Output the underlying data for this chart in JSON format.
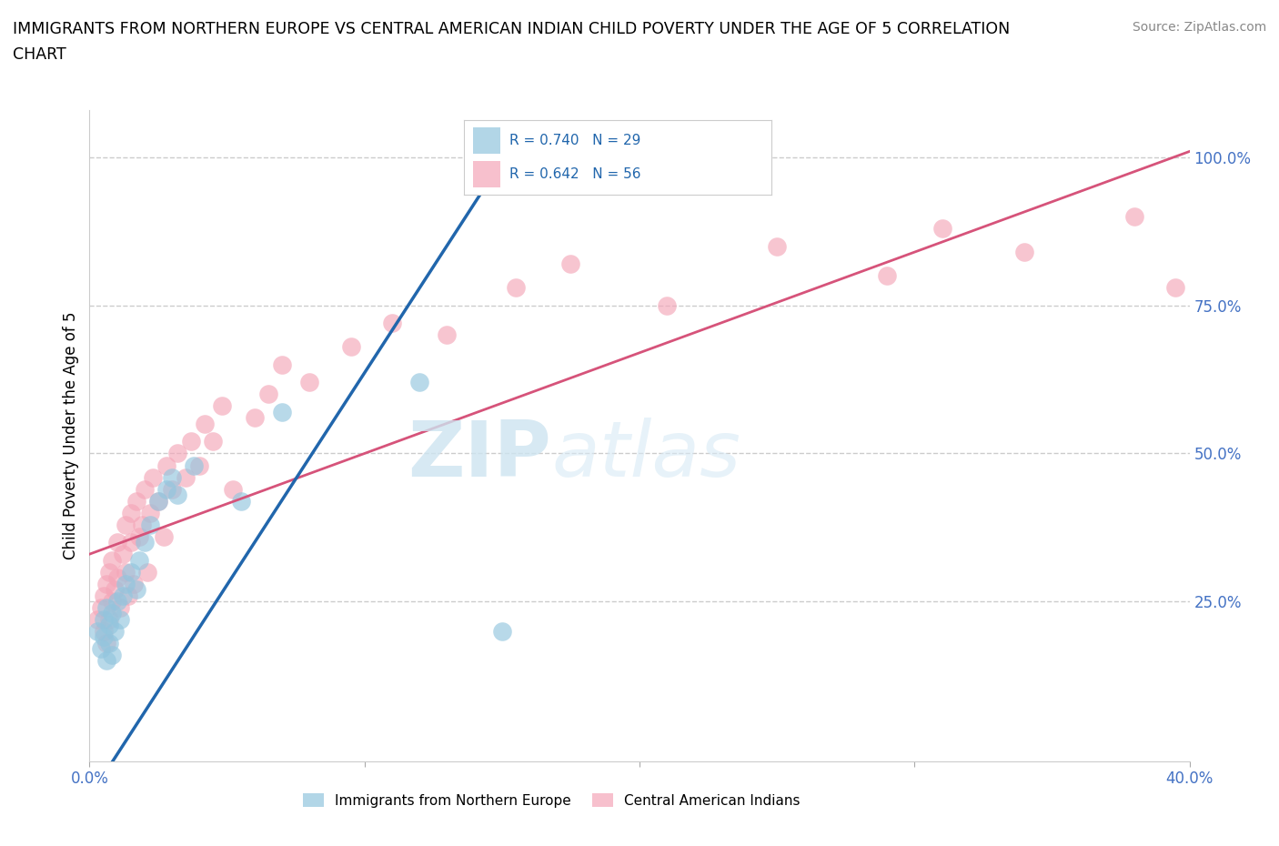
{
  "title_line1": "IMMIGRANTS FROM NORTHERN EUROPE VS CENTRAL AMERICAN INDIAN CHILD POVERTY UNDER THE AGE OF 5 CORRELATION",
  "title_line2": "CHART",
  "source": "Source: ZipAtlas.com",
  "ylabel": "Child Poverty Under the Age of 5",
  "xlim": [
    0.0,
    0.4
  ],
  "ylim": [
    0.0,
    1.05
  ],
  "xtick_positions": [
    0.0,
    0.1,
    0.2,
    0.3,
    0.4
  ],
  "xticklabels": [
    "0.0%",
    "",
    "",
    "",
    "40.0%"
  ],
  "ytick_positions": [
    0.25,
    0.5,
    0.75,
    1.0
  ],
  "ytick_labels": [
    "25.0%",
    "50.0%",
    "75.0%",
    "100.0%"
  ],
  "watermark_zip": "ZIP",
  "watermark_atlas": "atlas",
  "legend_r1": "R = 0.740",
  "legend_n1": "N = 29",
  "legend_r2": "R = 0.642",
  "legend_n2": "N = 56",
  "legend_label1": "Immigrants from Northern Europe",
  "legend_label2": "Central American Indians",
  "color_blue": "#92c5de",
  "color_pink": "#f4a6b8",
  "color_blue_line": "#2166ac",
  "color_pink_line": "#d6537a",
  "blue_line_x": [
    0.0,
    0.155
  ],
  "blue_line_y": [
    -0.08,
    1.03
  ],
  "pink_line_x": [
    0.0,
    0.4
  ],
  "pink_line_y": [
    0.33,
    1.01
  ],
  "blue_x": [
    0.003,
    0.004,
    0.005,
    0.005,
    0.006,
    0.006,
    0.007,
    0.007,
    0.008,
    0.008,
    0.009,
    0.01,
    0.011,
    0.012,
    0.013,
    0.015,
    0.017,
    0.018,
    0.02,
    0.022,
    0.025,
    0.028,
    0.03,
    0.032,
    0.038,
    0.055,
    0.07,
    0.12,
    0.15
  ],
  "blue_y": [
    0.2,
    0.17,
    0.19,
    0.22,
    0.15,
    0.24,
    0.18,
    0.21,
    0.16,
    0.23,
    0.2,
    0.25,
    0.22,
    0.26,
    0.28,
    0.3,
    0.27,
    0.32,
    0.35,
    0.38,
    0.42,
    0.44,
    0.46,
    0.43,
    0.48,
    0.42,
    0.57,
    0.62,
    0.2
  ],
  "pink_x": [
    0.003,
    0.004,
    0.005,
    0.005,
    0.006,
    0.006,
    0.007,
    0.007,
    0.008,
    0.008,
    0.009,
    0.01,
    0.01,
    0.011,
    0.012,
    0.013,
    0.013,
    0.014,
    0.015,
    0.015,
    0.016,
    0.017,
    0.018,
    0.019,
    0.02,
    0.021,
    0.022,
    0.023,
    0.025,
    0.027,
    0.028,
    0.03,
    0.032,
    0.035,
    0.037,
    0.04,
    0.042,
    0.045,
    0.048,
    0.052,
    0.06,
    0.065,
    0.07,
    0.08,
    0.095,
    0.11,
    0.13,
    0.155,
    0.175,
    0.21,
    0.25,
    0.29,
    0.31,
    0.34,
    0.38,
    0.395
  ],
  "pink_y": [
    0.22,
    0.24,
    0.2,
    0.26,
    0.28,
    0.18,
    0.3,
    0.22,
    0.25,
    0.32,
    0.27,
    0.29,
    0.35,
    0.24,
    0.33,
    0.3,
    0.38,
    0.26,
    0.35,
    0.4,
    0.28,
    0.42,
    0.36,
    0.38,
    0.44,
    0.3,
    0.4,
    0.46,
    0.42,
    0.36,
    0.48,
    0.44,
    0.5,
    0.46,
    0.52,
    0.48,
    0.55,
    0.52,
    0.58,
    0.44,
    0.56,
    0.6,
    0.65,
    0.62,
    0.68,
    0.72,
    0.7,
    0.78,
    0.82,
    0.75,
    0.85,
    0.8,
    0.88,
    0.84,
    0.9,
    0.78
  ]
}
